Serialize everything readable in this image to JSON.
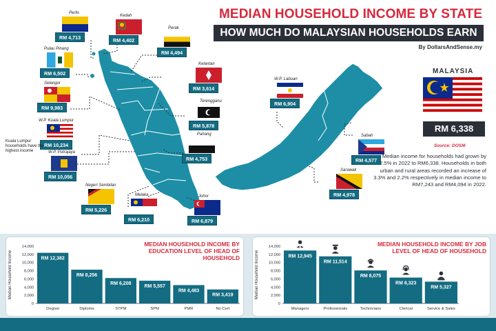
{
  "header": {
    "title": "MEDIAN HOUSEHOLD INCOME BY STATE",
    "subtitle": "HOW MUCH DO MALAYSIAN HOUSEHOLDS EARN",
    "credit": "By DollarsAndSense.my"
  },
  "malaysia": {
    "label": "MALAYSIA",
    "value": "RM 6,338",
    "source": "Source: DOSM",
    "description": "Median income for households had grown by 2.5% in 2022 to RM6,338. Households in both urban and rural areas recorded an increase of 3.3% and 2.2% respectively in median income to RM7,243 and RM4,094 in 2022."
  },
  "kl_note": "Kuala Lumpur households have the highest income",
  "states": [
    {
      "name": "Perlis",
      "value": "RM 4,713",
      "flag": "perlis"
    },
    {
      "name": "Kedah",
      "value": "RM 4,402",
      "flag": "kedah"
    },
    {
      "name": "Perak",
      "value": "RM 4,494",
      "flag": "perak"
    },
    {
      "name": "Pulau Pinang",
      "value": "RM 6,502",
      "flag": "penang"
    },
    {
      "name": "Kelantan",
      "value": "RM 3,614",
      "flag": "kelantan"
    },
    {
      "name": "Selangor",
      "value": "RM 9,983",
      "flag": "selangor"
    },
    {
      "name": "Terengganu",
      "value": "RM 5,878",
      "flag": "terengganu"
    },
    {
      "name": "W.P. Kuala Lumpur",
      "value": "RM 10,234",
      "flag": "kl"
    },
    {
      "name": "Pahang",
      "value": "RM 4,753",
      "flag": "pahang"
    },
    {
      "name": "W.P. Putrajaya",
      "value": "RM 10,056",
      "flag": "putrajaya"
    },
    {
      "name": "Negeri Sembilan",
      "value": "RM 5,226",
      "flag": "nsembilan"
    },
    {
      "name": "Melaka",
      "value": "RM 6,210",
      "flag": "melaka"
    },
    {
      "name": "Johor",
      "value": "RM 6,879",
      "flag": "johor"
    },
    {
      "name": "W.P. Labuan",
      "value": "RM 6,904",
      "flag": "labuan"
    },
    {
      "name": "Sabah",
      "value": "RM 4,577",
      "flag": "sabah"
    },
    {
      "name": "Sarawak",
      "value": "RM 4,978",
      "flag": "sarawak"
    }
  ],
  "colors": {
    "accent_red": "#d6283b",
    "teal": "#146c82",
    "map_teal": "#1d8ea6",
    "dark": "#2b2f38"
  },
  "chart_data": [
    {
      "type": "bar",
      "title": "MEDIAN HOUSEHOLD INCOME BY EDUCATION LEVEL OF HEAD OF HOUSEHOLD",
      "ylabel": "Median Household Income",
      "ylim": [
        0,
        14000
      ],
      "yticks": [
        "0",
        "2,000",
        "4,000",
        "6,000",
        "8,000",
        "10,000",
        "12,000",
        "14,000"
      ],
      "categories": [
        "Degree",
        "Diploma",
        "STPM",
        "SPM",
        "PMR",
        "No Cert"
      ],
      "values": [
        12382,
        8256,
        6208,
        5557,
        4483,
        3419
      ],
      "labels": [
        "RM 12,382",
        "RM 8,256",
        "RM 6,208",
        "RM 5,557",
        "RM 4,483",
        "RM 3,419"
      ]
    },
    {
      "type": "bar",
      "title": "MEDIAN HOUSEHOLD INCOME BY JOB LEVEL OF HEAD OF HOUSEHOLD",
      "ylabel": "Median Household Income",
      "ylim": [
        0,
        14000
      ],
      "yticks": [
        "0",
        "2,000",
        "4,000",
        "6,000",
        "8,000",
        "10,000",
        "12,000",
        "14,000"
      ],
      "categories": [
        "Managers",
        "Professionals",
        "Technicians",
        "Clerical",
        "Service & Sales"
      ],
      "values": [
        12945,
        11514,
        8075,
        6323,
        5327
      ],
      "labels": [
        "RM 12,945",
        "RM 11,514",
        "RM 8,075",
        "RM 6,323",
        "RM 5,327"
      ],
      "icons": [
        "manager-icon",
        "professional-icon",
        "technician-icon",
        "clerical-icon",
        "service-icon"
      ]
    }
  ]
}
